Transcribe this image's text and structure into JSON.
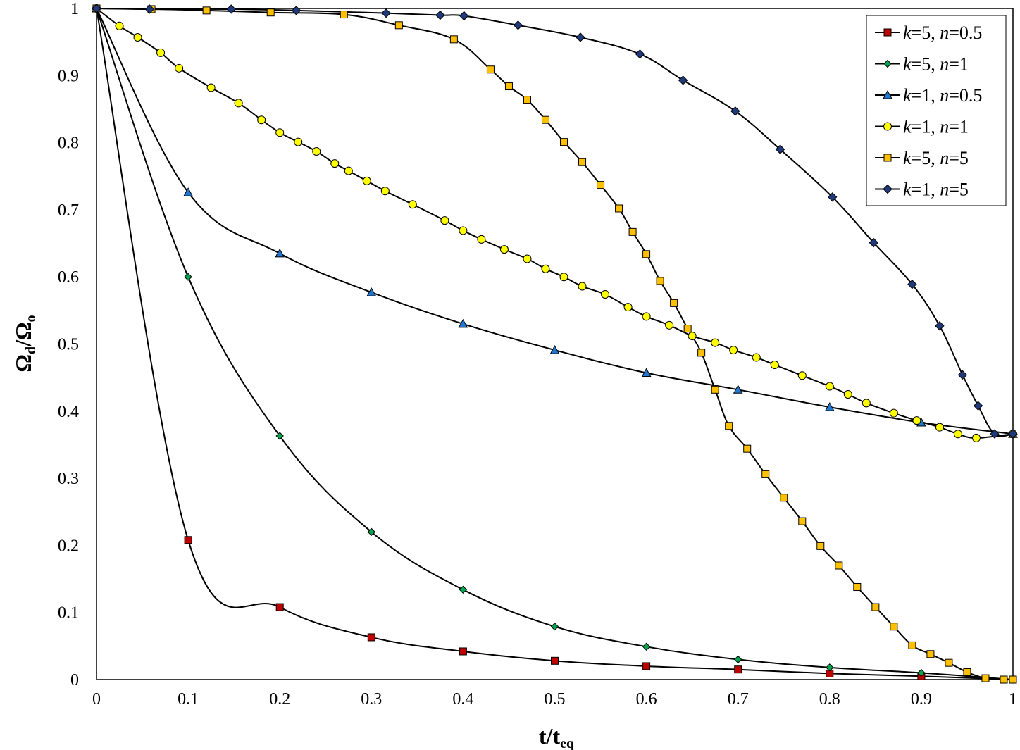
{
  "chart_data": {
    "type": "line",
    "title": "",
    "xlabel": {
      "main": "t/t",
      "sub": "eq"
    },
    "ylabel": {
      "main": "Ω",
      "sub": "d",
      "rest": "/Ω",
      "sub2": "o"
    },
    "xlim": [
      0,
      1
    ],
    "ylim": [
      0,
      1
    ],
    "xticks": [
      "0",
      "0.1",
      "0.2",
      "0.3",
      "0.4",
      "0.5",
      "0.6",
      "0.7",
      "0.8",
      "0.9",
      "1"
    ],
    "yticks": [
      "0",
      "0.1",
      "0.2",
      "0.3",
      "0.4",
      "0.5",
      "0.6",
      "0.7",
      "0.8",
      "0.9",
      "1"
    ],
    "grid": false,
    "legend_position": "top-right",
    "series": [
      {
        "name": "k=5, n=0.5",
        "label": {
          "k": "5",
          "n": "0.5"
        },
        "marker": "square",
        "color": "#c00000",
        "x": [
          0,
          0.1,
          0.2,
          0.3,
          0.4,
          0.5,
          0.6,
          0.7,
          0.8,
          0.9,
          1
        ],
        "y": [
          1,
          0.208,
          0.108,
          0.063,
          0.042,
          0.028,
          0.02,
          0.015,
          0.009,
          0.005,
          0
        ]
      },
      {
        "name": "k=5, n=1",
        "label": {
          "k": "5",
          "n": "1"
        },
        "marker": "diamond",
        "color": "#00a550",
        "x": [
          0,
          0.1,
          0.2,
          0.3,
          0.4,
          0.5,
          0.6,
          0.7,
          0.8,
          0.9,
          1
        ],
        "y": [
          1,
          0.6,
          0.363,
          0.22,
          0.134,
          0.079,
          0.049,
          0.03,
          0.018,
          0.01,
          0
        ]
      },
      {
        "name": "k=1, n=0.5",
        "label": {
          "k": "1",
          "n": "0.5"
        },
        "marker": "triangle",
        "color": "#1f77d0",
        "x": [
          0,
          0.1,
          0.2,
          0.3,
          0.4,
          0.5,
          0.6,
          0.7,
          0.8,
          0.9,
          1
        ],
        "y": [
          1,
          0.726,
          0.635,
          0.577,
          0.53,
          0.491,
          0.457,
          0.432,
          0.406,
          0.383,
          0.366
        ]
      },
      {
        "name": "k=1, n=1",
        "label": {
          "k": "1",
          "n": "1"
        },
        "marker": "circle",
        "color": "#ffff00",
        "x": [
          0,
          0.025,
          0.045,
          0.07,
          0.09,
          0.125,
          0.155,
          0.18,
          0.2,
          0.22,
          0.24,
          0.26,
          0.275,
          0.295,
          0.315,
          0.345,
          0.38,
          0.4,
          0.42,
          0.445,
          0.47,
          0.49,
          0.51,
          0.53,
          0.555,
          0.58,
          0.6,
          0.625,
          0.65,
          0.675,
          0.695,
          0.72,
          0.74,
          0.77,
          0.8,
          0.82,
          0.84,
          0.87,
          0.895,
          0.92,
          0.94,
          0.96,
          1
        ],
        "y": [
          1,
          0.974,
          0.957,
          0.934,
          0.911,
          0.882,
          0.859,
          0.834,
          0.815,
          0.801,
          0.787,
          0.769,
          0.758,
          0.743,
          0.728,
          0.708,
          0.684,
          0.669,
          0.656,
          0.641,
          0.627,
          0.612,
          0.6,
          0.586,
          0.574,
          0.555,
          0.541,
          0.528,
          0.512,
          0.502,
          0.491,
          0.48,
          0.469,
          0.453,
          0.437,
          0.425,
          0.412,
          0.397,
          0.386,
          0.376,
          0.366,
          0.36,
          0.366
        ]
      },
      {
        "name": "k=5, n=5",
        "label": {
          "k": "5",
          "n": "5"
        },
        "marker": "square",
        "color": "#ffc000",
        "x": [
          0,
          0.06,
          0.12,
          0.19,
          0.27,
          0.33,
          0.39,
          0.43,
          0.45,
          0.47,
          0.49,
          0.51,
          0.53,
          0.55,
          0.57,
          0.585,
          0.6,
          0.615,
          0.63,
          0.645,
          0.66,
          0.675,
          0.69,
          0.71,
          0.73,
          0.75,
          0.77,
          0.79,
          0.81,
          0.83,
          0.85,
          0.87,
          0.89,
          0.91,
          0.93,
          0.95,
          0.97,
          0.99,
          1
        ],
        "y": [
          1,
          0.999,
          0.997,
          0.994,
          0.991,
          0.975,
          0.954,
          0.909,
          0.884,
          0.864,
          0.834,
          0.801,
          0.771,
          0.737,
          0.702,
          0.667,
          0.634,
          0.594,
          0.561,
          0.523,
          0.487,
          0.432,
          0.378,
          0.344,
          0.306,
          0.271,
          0.236,
          0.199,
          0.17,
          0.138,
          0.108,
          0.079,
          0.051,
          0.038,
          0.025,
          0.011,
          0.002,
          0,
          0
        ]
      },
      {
        "name": "k=1, n=5",
        "label": {
          "k": "1",
          "n": "5"
        },
        "marker": "diamond",
        "color": "#1f3a7a",
        "x": [
          0,
          0.058,
          0.147,
          0.218,
          0.316,
          0.375,
          0.401,
          0.46,
          0.528,
          0.593,
          0.64,
          0.697,
          0.746,
          0.803,
          0.848,
          0.89,
          0.92,
          0.945,
          0.962,
          0.98,
          1
        ],
        "y": [
          1,
          0.999,
          0.999,
          0.997,
          0.993,
          0.99,
          0.989,
          0.975,
          0.957,
          0.932,
          0.893,
          0.847,
          0.79,
          0.719,
          0.651,
          0.589,
          0.527,
          0.454,
          0.408,
          0.366,
          0.366
        ]
      }
    ]
  }
}
